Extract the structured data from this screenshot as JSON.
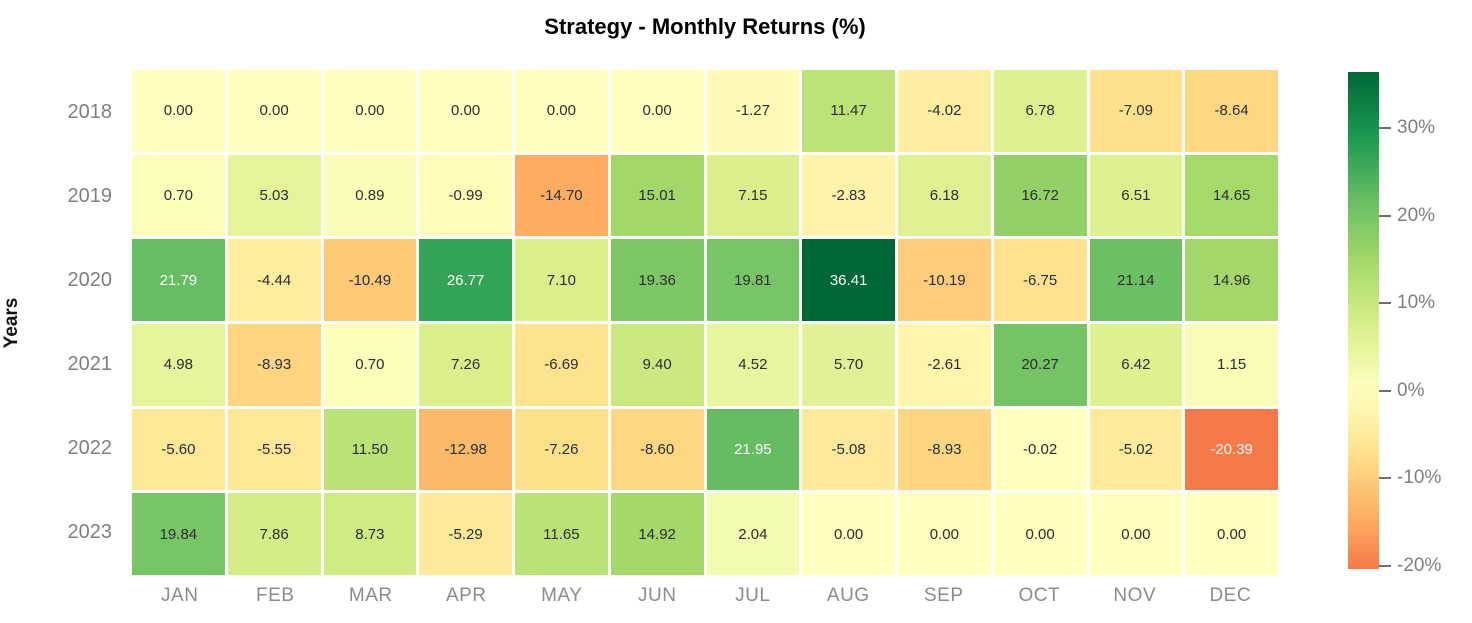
{
  "title": "Strategy - Monthly Returns (%)",
  "y_axis_label": "Years",
  "colors": {
    "background": "#ffffff",
    "title_text": "#000000",
    "axis_label_text": "#111111",
    "tick_label_text": "#7f7f7f",
    "month_label_text": "#8c8c8c",
    "cell_text_dark": "#2d2d2d",
    "cell_text_light": "#fafafa",
    "cell_gap": "#ffffff",
    "colorbar_tick_dash": "#6e6e6e",
    "colormap_anchors": [
      "#a50026",
      "#d73027",
      "#f46d43",
      "#fdae61",
      "#fee08b",
      "#ffffbf",
      "#d9ef8b",
      "#a6d96a",
      "#66bd63",
      "#1a9850",
      "#006837"
    ]
  },
  "chart_data": {
    "type": "heatmap",
    "title": "Strategy - Monthly Returns (%)",
    "xlabel": "",
    "ylabel": "Years",
    "colormap": "RdYlGn",
    "legend_position": "right-colorbar",
    "grid": false,
    "x_categories": [
      "JAN",
      "FEB",
      "MAR",
      "APR",
      "MAY",
      "JUN",
      "JUL",
      "AUG",
      "SEP",
      "OCT",
      "NOV",
      "DEC"
    ],
    "y_categories": [
      "2018",
      "2019",
      "2020",
      "2021",
      "2022",
      "2023"
    ],
    "series": [
      {
        "name": "2018",
        "values": [
          0.0,
          0.0,
          0.0,
          0.0,
          0.0,
          0.0,
          -1.27,
          11.47,
          -4.02,
          6.78,
          -7.09,
          -8.64
        ]
      },
      {
        "name": "2019",
        "values": [
          0.7,
          5.03,
          0.89,
          -0.99,
          -14.7,
          15.01,
          7.15,
          -2.83,
          6.18,
          16.72,
          6.51,
          14.65
        ]
      },
      {
        "name": "2020",
        "values": [
          21.79,
          -4.44,
          -10.49,
          26.77,
          7.1,
          19.36,
          19.81,
          36.41,
          -10.19,
          -6.75,
          21.14,
          14.96
        ]
      },
      {
        "name": "2021",
        "values": [
          4.98,
          -8.93,
          0.7,
          7.26,
          -6.69,
          9.4,
          4.52,
          5.7,
          -2.61,
          20.27,
          6.42,
          1.15
        ]
      },
      {
        "name": "2022",
        "values": [
          -5.6,
          -5.55,
          11.5,
          -12.98,
          -7.26,
          -8.6,
          21.95,
          -5.08,
          -8.93,
          -0.02,
          -5.02,
          -20.39
        ]
      },
      {
        "name": "2023",
        "values": [
          19.84,
          7.86,
          8.73,
          -5.29,
          11.65,
          14.92,
          2.04,
          0.0,
          0.0,
          0.0,
          0.0,
          0.0
        ]
      }
    ],
    "value_decimals": 2,
    "vmin": -20.39,
    "vmax": 36.41,
    "color_norm_center": 0,
    "color_norm_symmetric_limit": 36.41,
    "colorbar": {
      "tick_labels": [
        "30%",
        "20%",
        "10%",
        "0%",
        "-10%",
        "-20%"
      ],
      "tick_values": [
        30,
        20,
        10,
        0,
        -10,
        -20
      ]
    }
  }
}
